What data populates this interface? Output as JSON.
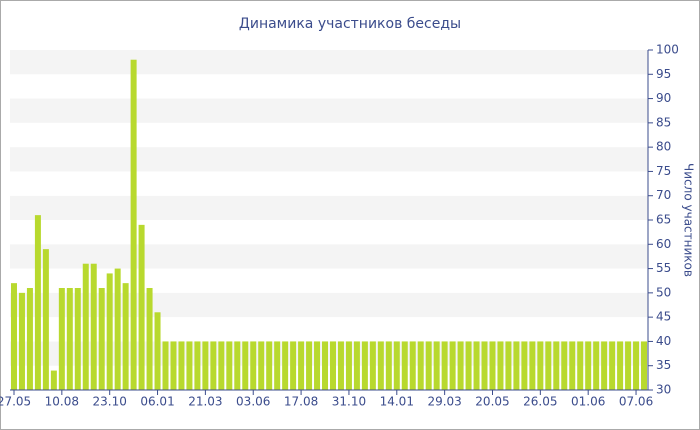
{
  "chart_data": {
    "type": "bar",
    "title": "Динамика участников беседы",
    "y_label": "Число участников",
    "categories": [
      "27.05",
      null,
      null,
      null,
      null,
      null,
      "10.08",
      null,
      null,
      null,
      null,
      null,
      "23.10",
      null,
      null,
      null,
      null,
      null,
      "06.01",
      null,
      null,
      null,
      null,
      null,
      "21.03",
      null,
      null,
      null,
      null,
      null,
      "03.06",
      null,
      null,
      null,
      null,
      null,
      "17.08",
      null,
      null,
      null,
      null,
      null,
      "31.10",
      null,
      null,
      null,
      null,
      null,
      "14.01",
      null,
      null,
      null,
      null,
      null,
      "29.03",
      null,
      null,
      null,
      null,
      null,
      "20.05",
      null,
      null,
      null,
      null,
      null,
      "26.05",
      null,
      null,
      null,
      null,
      null,
      "01.06",
      null,
      null,
      null,
      null,
      null,
      "07.06",
      null
    ],
    "values": [
      52,
      50,
      51,
      66,
      59,
      34,
      51,
      51,
      51,
      56,
      56,
      51,
      54,
      55,
      52,
      98,
      64,
      51,
      46,
      40,
      40,
      40,
      40,
      40,
      40,
      40,
      40,
      40,
      40,
      40,
      40,
      40,
      40,
      40,
      40,
      40,
      40,
      40,
      40,
      40,
      40,
      40,
      40,
      40,
      40,
      40,
      40,
      40,
      40,
      40,
      40,
      40,
      40,
      40,
      40,
      40,
      40,
      40,
      40,
      40,
      40,
      40,
      40,
      40,
      40,
      40,
      40,
      40,
      40,
      40,
      40,
      40,
      40,
      40,
      40,
      40,
      40,
      40,
      40,
      40
    ],
    "color": "#b8d92e",
    "ylim": [
      30,
      100
    ],
    "yticks": [
      30,
      35,
      40,
      45,
      50,
      55,
      60,
      65,
      70,
      75,
      80,
      85,
      90,
      95,
      100
    ],
    "grid": true,
    "y_axis_side": "right"
  }
}
